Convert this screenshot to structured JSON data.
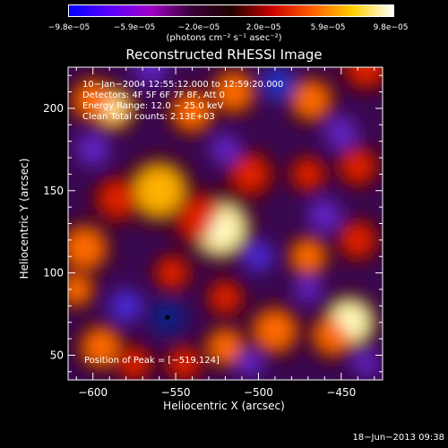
{
  "colorbar": {
    "ticks": [
      "−9.8e−05",
      "−5.9e−05",
      "−2.0e−05",
      "2.0e−05",
      "5.9e−05",
      "9.8e−05"
    ],
    "units": "(photons cm⁻² s⁻¹ asec⁻²)",
    "colors": [
      "#0000ff",
      "#5a00ff",
      "#a000c8",
      "#3a003a",
      "#200000",
      "#cc0000",
      "#ff6000",
      "#ffd000",
      "#ffffff"
    ]
  },
  "chart_data": {
    "type": "heatmap",
    "title": "Reconstructed RHESSI Image",
    "xlabel": "Heliocentric X (arcsec)",
    "ylabel": "Heliocentric Y (arcsec)",
    "xlim": [
      -615,
      -425
    ],
    "ylim": [
      35,
      225
    ],
    "xticks": [
      -600,
      -550,
      -500,
      -450
    ],
    "yticks": [
      50,
      100,
      150,
      200
    ],
    "xtick_labels": [
      "−600",
      "−550",
      "−500",
      "−450"
    ],
    "ytick_labels": [
      "50",
      "100",
      "150",
      "200"
    ],
    "value_range": [
      -9.8e-05,
      9.8e-05
    ],
    "peak": [
      -519,
      124
    ],
    "min_marker": [
      -555,
      73
    ],
    "blobs": [
      {
        "x": -523,
        "y": 127,
        "r": 14,
        "v": 1.0
      },
      {
        "x": -535,
        "y": 133,
        "r": 12,
        "v": 0.5
      },
      {
        "x": -588,
        "y": 200,
        "r": 10,
        "v": 0.85
      },
      {
        "x": -600,
        "y": 205,
        "r": 10,
        "v": 0.7
      },
      {
        "x": -540,
        "y": 198,
        "r": 10,
        "v": 0.65
      },
      {
        "x": -515,
        "y": 210,
        "r": 10,
        "v": 0.6
      },
      {
        "x": -560,
        "y": 150,
        "r": 14,
        "v": 0.75
      },
      {
        "x": -585,
        "y": 145,
        "r": 10,
        "v": 0.55
      },
      {
        "x": -605,
        "y": 115,
        "r": 11,
        "v": 0.7
      },
      {
        "x": -610,
        "y": 90,
        "r": 8,
        "v": 0.6
      },
      {
        "x": -595,
        "y": 55,
        "r": 10,
        "v": 0.6
      },
      {
        "x": -575,
        "y": 45,
        "r": 8,
        "v": 0.55
      },
      {
        "x": -445,
        "y": 70,
        "r": 12,
        "v": 0.95
      },
      {
        "x": -455,
        "y": 62,
        "r": 10,
        "v": 0.7
      },
      {
        "x": -490,
        "y": 65,
        "r": 11,
        "v": 0.7
      },
      {
        "x": -520,
        "y": 55,
        "r": 9,
        "v": 0.6
      },
      {
        "x": -545,
        "y": 45,
        "r": 8,
        "v": 0.55
      },
      {
        "x": -470,
        "y": 110,
        "r": 9,
        "v": 0.6
      },
      {
        "x": -440,
        "y": 120,
        "r": 9,
        "v": 0.55
      },
      {
        "x": -505,
        "y": 160,
        "r": 10,
        "v": 0.55
      },
      {
        "x": -470,
        "y": 160,
        "r": 8,
        "v": 0.5
      },
      {
        "x": -440,
        "y": 165,
        "r": 9,
        "v": 0.45
      },
      {
        "x": -468,
        "y": 205,
        "r": 10,
        "v": 0.6
      },
      {
        "x": -435,
        "y": 225,
        "r": 10,
        "v": 0.55
      },
      {
        "x": -552,
        "y": 100,
        "r": 8,
        "v": 0.5
      },
      {
        "x": -520,
        "y": 85,
        "r": 8,
        "v": 0.45
      },
      {
        "x": -555,
        "y": 73,
        "r": 11,
        "v": -1.0
      },
      {
        "x": -488,
        "y": 215,
        "r": 10,
        "v": -0.9
      },
      {
        "x": -500,
        "y": 110,
        "r": 9,
        "v": -0.7
      },
      {
        "x": -580,
        "y": 80,
        "r": 10,
        "v": -0.6
      },
      {
        "x": -600,
        "y": 175,
        "r": 10,
        "v": -0.5
      },
      {
        "x": -520,
        "y": 175,
        "r": 9,
        "v": -0.5
      },
      {
        "x": -460,
        "y": 135,
        "r": 10,
        "v": -0.55
      },
      {
        "x": -450,
        "y": 185,
        "r": 10,
        "v": -0.55
      },
      {
        "x": -470,
        "y": 90,
        "r": 8,
        "v": -0.5
      },
      {
        "x": -505,
        "y": 45,
        "r": 8,
        "v": -0.5
      },
      {
        "x": -565,
        "y": 225,
        "r": 10,
        "v": -0.45
      },
      {
        "x": -435,
        "y": 45,
        "r": 8,
        "v": -0.5
      }
    ]
  },
  "info": {
    "line1": "10−Jan−2004 12:55:12.000 to 12:59:20.000",
    "line2": "Detectors: 4F 5F 6F 7F 8F, Att 0",
    "line3": "Energy Range: 12.0 − 25.0 keV",
    "line4": "Clean    Total counts: 2.13E+03",
    "peak_label": "Position of Peak = [−519,124]"
  },
  "footer": {
    "date": "18−Jun−2013 09:38"
  }
}
